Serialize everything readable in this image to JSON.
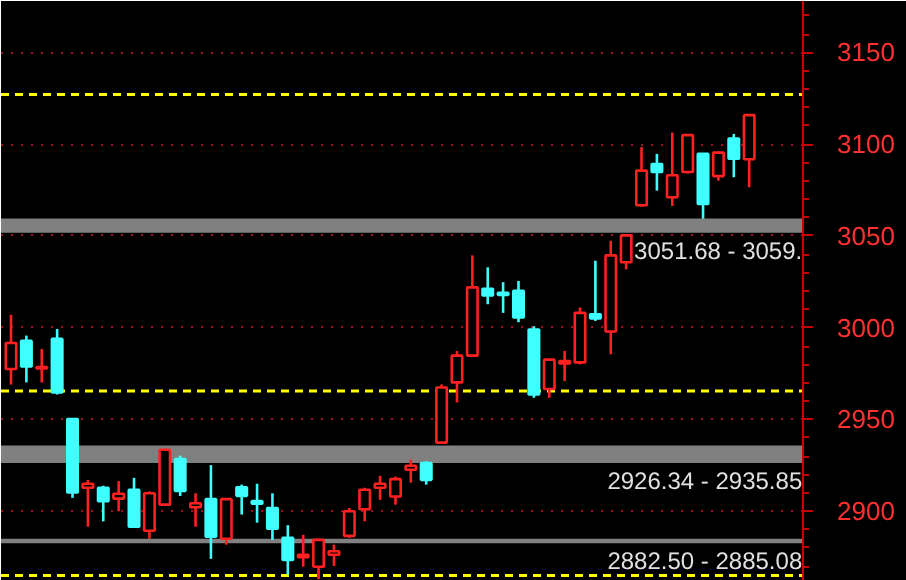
{
  "chart_data": {
    "type": "candlestick",
    "categories": [
      null,
      null,
      null,
      null,
      null,
      null,
      null,
      null,
      null,
      null,
      null,
      null,
      null,
      null,
      null,
      null,
      null,
      null,
      null,
      null,
      null,
      null,
      null,
      null,
      null,
      null,
      null,
      null,
      null,
      null,
      null,
      null,
      null,
      null,
      null,
      null,
      null,
      null,
      null,
      null,
      null,
      null,
      null,
      null,
      null,
      null,
      null,
      null,
      null
    ],
    "ohlc": [
      [
        2977.5,
        3007,
        2969,
        2991.7
      ],
      [
        2992.8,
        2995.7,
        2970.2,
        2978.9
      ],
      [
        2977.8,
        2988.4,
        2970.2,
        2978.5
      ],
      [
        2993.9,
        2999.3,
        2963.6,
        2964.7
      ],
      [
        2950.2,
        2950.5,
        2907.3,
        2910.2
      ],
      [
        2912.8,
        2917.1,
        2891.6,
        2915
      ],
      [
        2912.8,
        2913.9,
        2894.5,
        2905.5
      ],
      [
        2906.9,
        2916.4,
        2900,
        2909.5
      ],
      [
        2911.7,
        2918.2,
        2891.6,
        2891.6
      ],
      [
        2889.4,
        2910.9,
        2885,
        2909.8
      ],
      [
        2903.6,
        2934,
        2903,
        2933.5
      ],
      [
        2928.4,
        2930.3,
        2908.3,
        2911.1
      ],
      [
        2902.2,
        2909.8,
        2891.6,
        2904.4
      ],
      [
        2906.6,
        2925.1,
        2874.1,
        2886.1
      ],
      [
        2885,
        2907,
        2881.8,
        2906.6
      ],
      [
        2913.1,
        2914.5,
        2898.2,
        2908.4
      ],
      [
        2905.5,
        2915,
        2893.8,
        2904.1
      ],
      [
        2901.8,
        2909.8,
        2884.4,
        2890.5
      ],
      [
        2885.5,
        2892.4,
        2865.4,
        2873.5
      ],
      [
        2874.9,
        2887.2,
        2869.8,
        2876.3
      ],
      [
        2869.8,
        2885,
        2863,
        2884.4
      ],
      [
        2876.3,
        2881.8,
        2870.2,
        2878.2
      ],
      [
        2886.6,
        2901.8,
        2885.5,
        2900
      ],
      [
        2901.1,
        2912.8,
        2894.5,
        2911.7
      ],
      [
        2912.8,
        2919.3,
        2906.2,
        2915
      ],
      [
        2908,
        2918.9,
        2903.6,
        2917.5
      ],
      [
        2922.6,
        2928.1,
        2915.6,
        2924.8
      ],
      [
        2926.2,
        2927.3,
        2914.5,
        2917.1
      ],
      [
        2937.4,
        2969.1,
        2937,
        2967.4
      ],
      [
        2970.2,
        2987.3,
        2959.3,
        2984.8
      ],
      [
        2984.8,
        3039.4,
        2984,
        3022
      ],
      [
        3021.2,
        3032.9,
        3012.8,
        3017.6
      ],
      [
        3019,
        3024.8,
        3008.1,
        3017.9
      ],
      [
        3020.1,
        3025.5,
        3003,
        3005.6
      ],
      [
        2999,
        3000.8,
        2961.8,
        2963.6
      ],
      [
        2966.6,
        2983,
        2961.8,
        2982.6
      ],
      [
        2980.5,
        2987.3,
        2970.9,
        2981.9
      ],
      [
        2981.1,
        3011,
        2980,
        3008.1
      ],
      [
        3007.3,
        3036.5,
        3003.7,
        3005.1
      ],
      [
        2997.9,
        3047.4,
        2985.5,
        3039.4
      ],
      [
        3035.7,
        3050.5,
        3031.8,
        3050.3
      ],
      [
        3066.7,
        3098.4,
        3066,
        3085.6
      ],
      [
        3089.2,
        3094.7,
        3074.7,
        3084.8
      ],
      [
        3071.1,
        3106.3,
        3066.3,
        3083.1
      ],
      [
        3084.8,
        3105,
        3084,
        3104.9
      ],
      [
        3094.7,
        3095,
        3059.4,
        3067.4
      ],
      [
        3082.6,
        3096,
        3080.1,
        3095.4
      ],
      [
        3103.1,
        3105.6,
        3082,
        3092.1
      ],
      [
        3091.8,
        3116,
        3076.5,
        3115.8
      ]
    ],
    "colors": [
      "#ff2020",
      "#40ffff",
      "#ff2020",
      "#40ffff",
      "#40ffff",
      "#ff2020",
      "#40ffff",
      "#ff2020",
      "#40ffff",
      "#ff2020",
      "#ff2020",
      "#40ffff",
      "#ff2020",
      "#40ffff",
      "#ff2020",
      "#40ffff",
      "#40ffff",
      "#40ffff",
      "#40ffff",
      "#ff2020",
      "#ff2020",
      "#ff2020",
      "#ff2020",
      "#ff2020",
      "#ff2020",
      "#ff2020",
      "#ff2020",
      "#40ffff",
      "#ff2020",
      "#ff2020",
      "#ff2020",
      "#40ffff",
      "#40ffff",
      "#40ffff",
      "#40ffff",
      "#ff2020",
      "#ff2020",
      "#ff2020",
      "#40ffff",
      "#ff2020",
      "#ff2020",
      "#ff2020",
      "#40ffff",
      "#ff2020",
      "#ff2020",
      "#40ffff",
      "#ff2020",
      "#40ffff",
      "#ff2020"
    ],
    "ylim": [
      2862,
      3178
    ],
    "yticks": [
      2900,
      2950,
      3000,
      3050,
      3100,
      3150
    ],
    "grid": "y",
    "tick_labels": "y",
    "ref_lines": [
      {
        "axis": "y",
        "value": 3127,
        "color": "#ffff00",
        "line_style": "dashed"
      },
      {
        "axis": "y",
        "value": 2965.5,
        "color": "#ffff00",
        "line_style": "dashed"
      },
      {
        "axis": "y",
        "value": 2865,
        "color": "#ffff00",
        "line_style": "dashed"
      }
    ],
    "bands": [
      {
        "axis": "y",
        "from": 3051.68,
        "to": 3059.5,
        "label": "3051.68 - 3059.",
        "color": "#808080"
      },
      {
        "axis": "y",
        "from": 2926.34,
        "to": 2935.85,
        "label": "2926.34 - 2935.85",
        "color": "#808080"
      },
      {
        "axis": "y",
        "from": 2882.5,
        "to": 2885.08,
        "label": "2882.50 - 2885.08",
        "color": "#808080"
      }
    ]
  }
}
